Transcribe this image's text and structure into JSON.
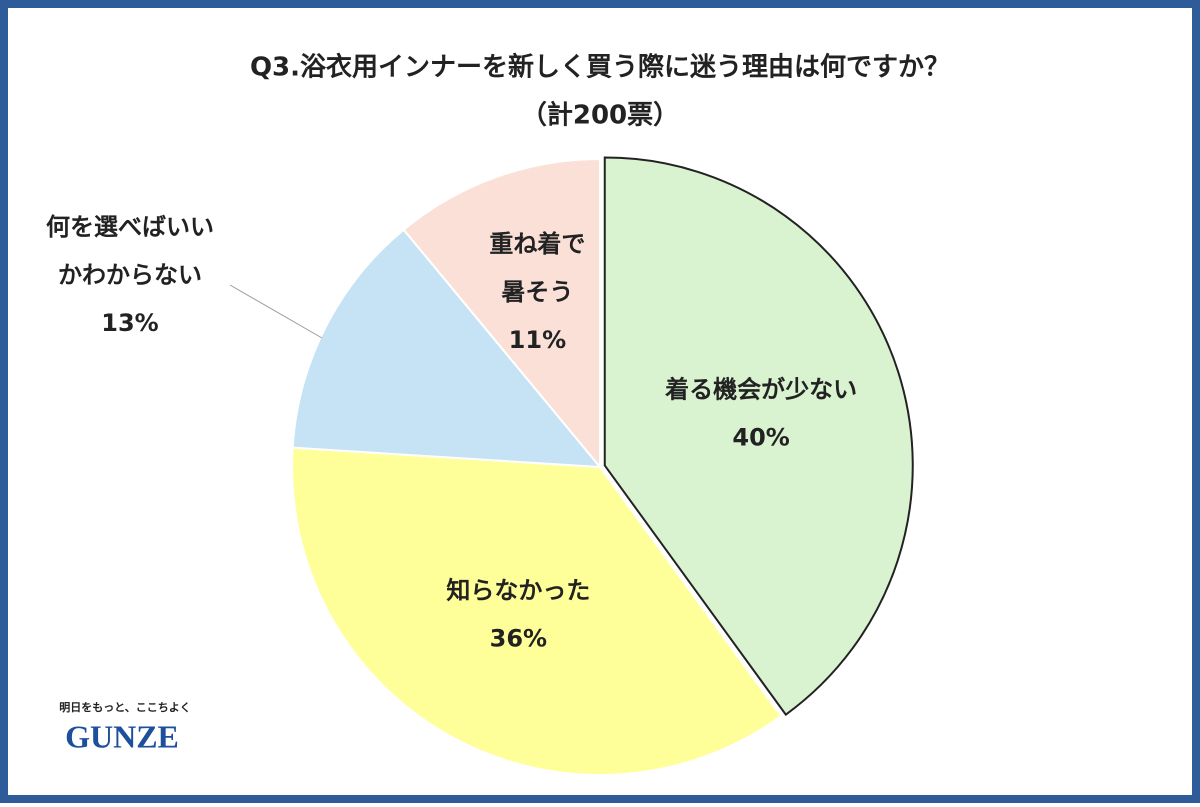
{
  "chart_data": {
    "type": "pie",
    "title": "Q3.浴衣用インナーを新しく買う際に迷う理由は何ですか？",
    "subtitle": "（計200票）",
    "categories": [
      [
        "着る機会が少ない"
      ],
      [
        "知らなかった"
      ],
      [
        "何を選べばいい",
        "かわからない"
      ],
      [
        "重ね着で",
        "暑そう"
      ]
    ],
    "values": [
      40,
      36,
      13,
      11
    ],
    "value_labels": [
      "40%",
      "36%",
      "13%",
      "11%"
    ],
    "colors": [
      "#d9f2d0",
      "#ffff99",
      "#c5e3f5",
      "#fbe0d8"
    ]
  },
  "logo": {
    "tagline": "明日をもっと、ここちよく",
    "name": "GUNZE"
  }
}
